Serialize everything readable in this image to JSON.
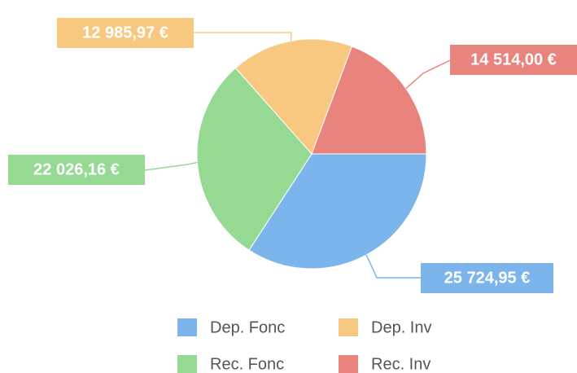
{
  "chart_data": {
    "type": "pie",
    "categories": [
      "Dep. Fonc",
      "Rec. Fonc",
      "Dep. Inv",
      "Rec. Inv"
    ],
    "values": [
      25724.95,
      22026.16,
      12985.97,
      14514.0
    ],
    "value_labels": [
      "25 724,95 €",
      "22 026,16 €",
      "12 985,97 €",
      "14 514,00 €"
    ],
    "colors": [
      "#7cb5ec",
      "#95d993",
      "#f9c880",
      "#e8837e"
    ],
    "legend": "bottom"
  }
}
